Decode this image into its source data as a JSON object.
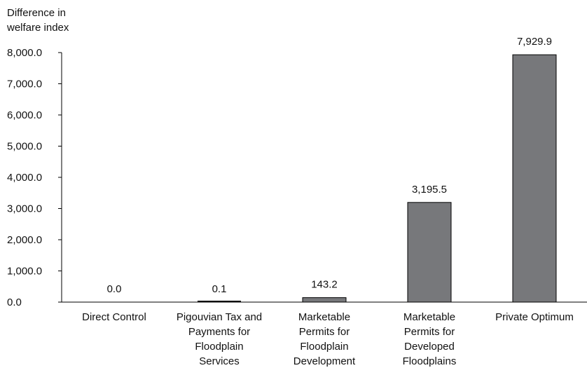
{
  "chart_data": {
    "type": "bar",
    "ylabel_lines": [
      "Difference in",
      "welfare index"
    ],
    "categories": [
      [
        "Direct Control"
      ],
      [
        "Pigouvian Tax and",
        "Payments for",
        "Floodplain",
        "Services"
      ],
      [
        "Marketable",
        "Permits for",
        "Floodplain",
        "Development"
      ],
      [
        "Marketable",
        "Permits for",
        "Developed",
        "Floodplains"
      ],
      [
        "Private Optimum"
      ]
    ],
    "values": [
      0.0,
      0.1,
      143.2,
      3195.5,
      7929.9
    ],
    "value_labels": [
      "0.0",
      "0.1",
      "143.2",
      "3,195.5",
      "7,929.9"
    ],
    "ylim": [
      0,
      8000
    ],
    "yticks": [
      0,
      1000,
      2000,
      3000,
      4000,
      5000,
      6000,
      7000,
      8000
    ],
    "ytick_labels": [
      "0.0",
      "1,000.0",
      "2,000.0",
      "3,000.0",
      "4,000.0",
      "5,000.0",
      "6,000.0",
      "7,000.0",
      "8,000.0"
    ],
    "grid": false,
    "legend": "none",
    "bar_color": "#77787b",
    "bar_edge_color": "#000000"
  }
}
